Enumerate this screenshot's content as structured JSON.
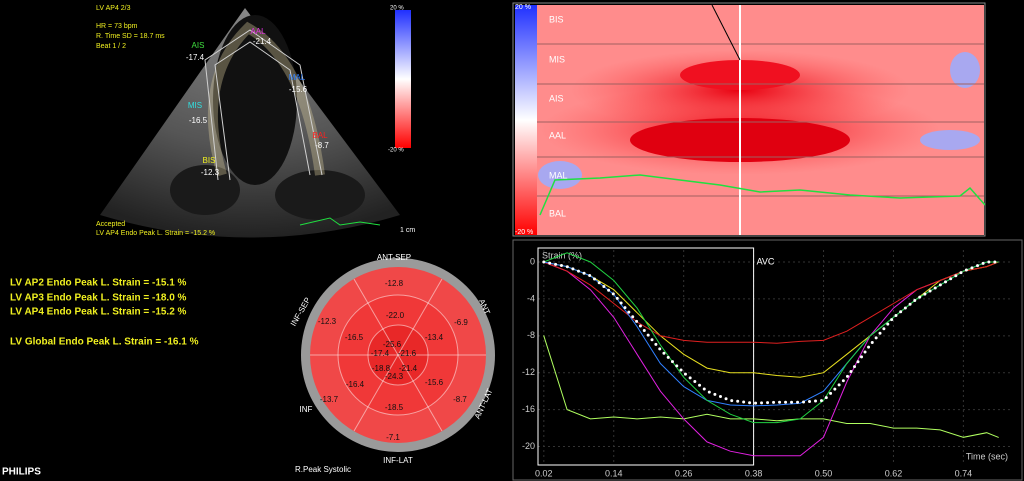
{
  "echo": {
    "view": "LV AP4  2/3",
    "hr": "HR = 73 bpm",
    "rtime": "R. Time SD = 18.7 ms",
    "beat": "Beat 1 / 2",
    "segments": [
      {
        "name": "AIS",
        "value": "-17.4"
      },
      {
        "name": "AAL",
        "value": "-21.4"
      },
      {
        "name": "MAL",
        "value": "-15.6"
      },
      {
        "name": "MIS",
        "value": "-16.5"
      },
      {
        "name": "BAL",
        "value": "-8.7"
      },
      {
        "name": "BIS",
        "value": "-12.3"
      }
    ],
    "status": "Accepted",
    "peak": "LV AP4 Endo Peak L. Strain = -15.2 %",
    "scale": "1 cm",
    "colorbar": [
      "20 %",
      "-20 %"
    ]
  },
  "heatmap": {
    "colorbar": [
      "20 %",
      "-20 %"
    ],
    "rows": [
      "BIS",
      "MIS",
      "AIS",
      "AAL",
      "MAL",
      "BAL"
    ]
  },
  "summary": [
    "LV AP2 Endo Peak L. Strain = -15.1 %",
    "LV AP3 Endo Peak L. Strain = -18.0 %",
    "LV AP4 Endo Peak L. Strain = -15.2 %",
    "LV Global Endo Peak L. Strain = -16.1 %"
  ],
  "bullseye": {
    "labels": [
      "ANT-SEP",
      "ANT",
      "ANT-LAT",
      "INF-LAT",
      "INF",
      "INF-SEP"
    ],
    "values": [
      "-12.8",
      "-12.3",
      "-6.9",
      "-22.0",
      "-16.5",
      "-13.4",
      "-25.6",
      "-17.4",
      "-21.6",
      "-18.8",
      "-21.4",
      "-24.3",
      "-16.4",
      "-15.6",
      "-13.7",
      "-8.7",
      "-18.5",
      "-7.1"
    ],
    "caption": "R.Peak Systolic"
  },
  "brand": "PHILIPS",
  "chart_data": {
    "type": "line",
    "ylabel": "Strain (%)",
    "xlabel": "Time (sec)",
    "annotations": [
      {
        "x": 0.38,
        "label": "AVC"
      }
    ],
    "x": [
      0.02,
      0.06,
      0.1,
      0.14,
      0.18,
      0.22,
      0.26,
      0.3,
      0.34,
      0.38,
      0.42,
      0.46,
      0.5,
      0.54,
      0.58,
      0.62,
      0.66,
      0.7,
      0.74,
      0.78,
      0.8
    ],
    "xlim": [
      0.01,
      0.82
    ],
    "ylim": [
      -22,
      1.3
    ],
    "xticks": [
      0.02,
      0.14,
      0.26,
      0.38,
      {
        "value": 0.5,
        "label": "0.50"
      },
      0.62,
      0.74
    ],
    "yticks": [
      0,
      -4,
      -8,
      -12,
      -16,
      -20
    ],
    "series": [
      {
        "color": "#b0ff60",
        "values": [
          -8,
          -16,
          -17,
          -16.8,
          -17,
          -16.8,
          -17,
          -16.5,
          -17,
          -17,
          -17.2,
          -17,
          -17,
          -17.5,
          -17.5,
          -18,
          -18,
          -18.2,
          -19,
          -18.5,
          -19
        ]
      },
      {
        "color": "#e020e0",
        "values": [
          0,
          -1,
          -3,
          -6,
          -10,
          -14,
          -17,
          -19.5,
          -20.5,
          -21,
          -21,
          -21,
          -19,
          -13,
          -8,
          -5,
          -3,
          -2,
          -1,
          0,
          0
        ]
      },
      {
        "color": "#e8e020",
        "values": [
          0,
          -0.5,
          -1.5,
          -3,
          -5.5,
          -8,
          -10,
          -11.5,
          -12,
          -12,
          -12.3,
          -12.5,
          -12,
          -10,
          -8,
          -6,
          -4,
          -2,
          -1,
          -0.5,
          0
        ]
      },
      {
        "color": "#e02020",
        "values": [
          0,
          -1,
          -2.5,
          -4.5,
          -6.5,
          -8,
          -8.5,
          -8.7,
          -8.7,
          -8.7,
          -8.8,
          -8.6,
          -8.5,
          -7.5,
          -6,
          -4.5,
          -3,
          -2,
          -1,
          -0.5,
          0
        ]
      },
      {
        "color": "#3080ff",
        "values": [
          0,
          -0.5,
          -1.5,
          -3.5,
          -7,
          -11,
          -13.5,
          -15,
          -15.5,
          -15.6,
          -15.5,
          -15.3,
          -14,
          -11,
          -8,
          -6,
          -4,
          -2.5,
          -1,
          0,
          0
        ]
      },
      {
        "color": "#20d040",
        "values": [
          0,
          1,
          0,
          -2,
          -5,
          -9,
          -12.5,
          -15,
          -16.5,
          -17.4,
          -17.4,
          -17,
          -15,
          -11,
          -8,
          -6,
          -4,
          -2.5,
          -1,
          0,
          0
        ]
      },
      {
        "color": "#ffffff",
        "dashed": true,
        "values": [
          0,
          -0.5,
          -1.5,
          -3.5,
          -6.5,
          -9.5,
          -12,
          -14,
          -15,
          -15.3,
          -15.2,
          -15.2,
          -15,
          -12.5,
          -9,
          -6,
          -4,
          -2.5,
          -1,
          0,
          0
        ]
      }
    ]
  }
}
